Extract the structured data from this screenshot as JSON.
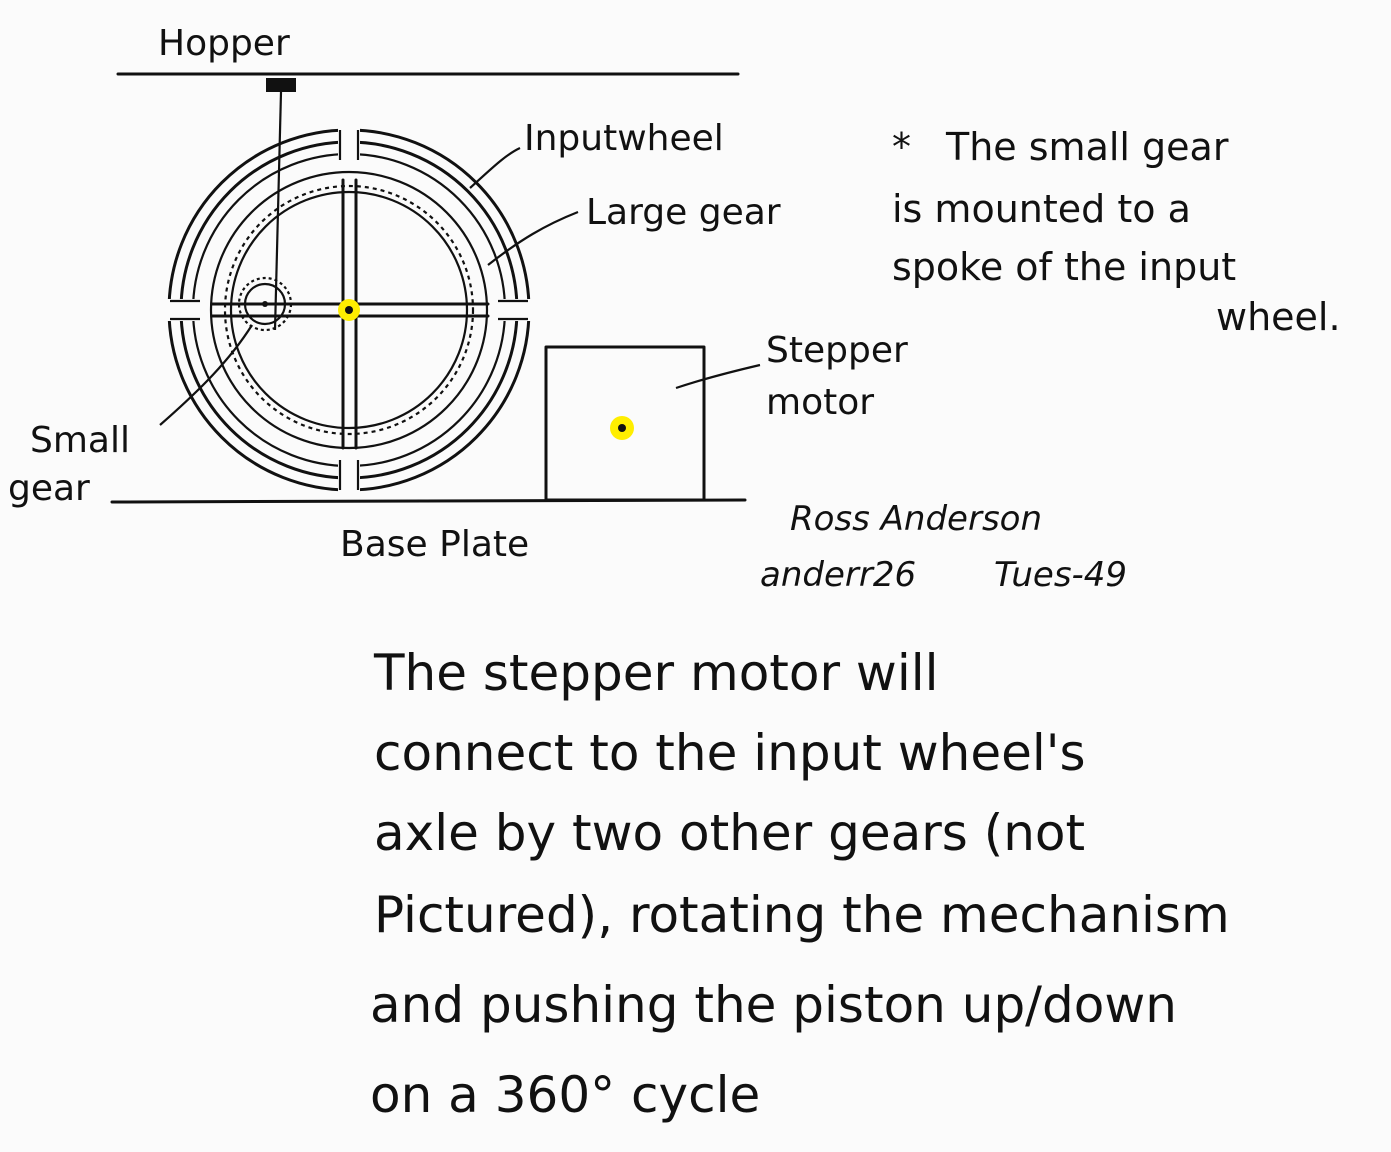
{
  "colors": {
    "ink": "#111111",
    "paper": "#fbfbfb",
    "highlight": "#ffee00"
  },
  "labels": {
    "hopper": "Hopper",
    "input_wheel": "Inputwheel",
    "large_gear": "Large gear",
    "small_gear_line1": "Small",
    "small_gear_line2": "gear",
    "stepper_line1": "Stepper",
    "stepper_line2": "motor",
    "base_plate": "Base Plate"
  },
  "note": {
    "marker": "*",
    "lines": [
      "The small gear",
      "is mounted to a",
      "spoke of the input",
      "wheel."
    ]
  },
  "signature": {
    "name": "Ross Anderson",
    "id": "anderr26",
    "section": "Tues-49"
  },
  "description": {
    "lines": [
      "The stepper motor will",
      "connect to the input wheel's",
      "axle by two other gears (not",
      "Pictured), rotating the mechanism",
      "and pushing the piston up/down",
      "on a 360° cycle"
    ]
  }
}
